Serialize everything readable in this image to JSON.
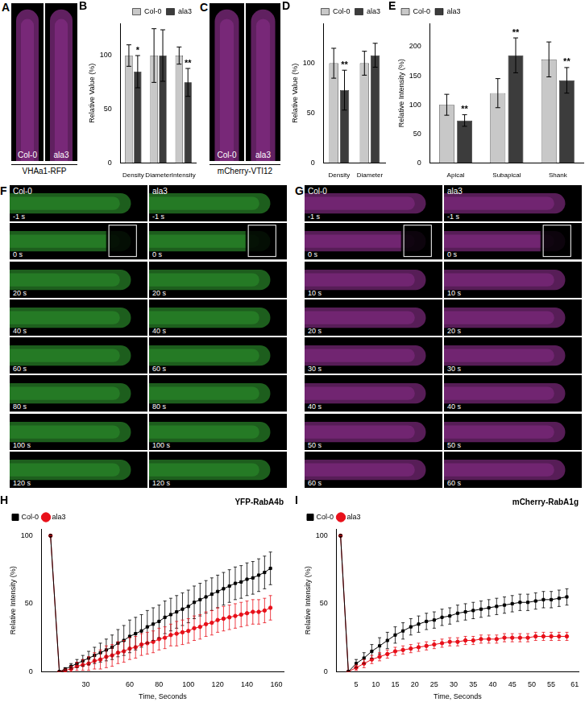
{
  "chart_data": [
    {
      "panel": "B",
      "type": "bar",
      "y_label": "Relative Value (%)",
      "categories": [
        "Density",
        "Diameter",
        "Intensity"
      ],
      "series": [
        {
          "name": "Col-0",
          "color": "#c8c8c8",
          "values": [
            100,
            100,
            100
          ],
          "errors": [
            10,
            25,
            8
          ]
        },
        {
          "name": "ala3",
          "color": "#3c3c3c",
          "values": [
            85,
            100,
            75
          ],
          "errors": [
            15,
            24,
            13
          ]
        }
      ],
      "ylim": [
        0,
        130
      ],
      "yticks": [
        0,
        50,
        100
      ],
      "grid": false,
      "legend": "top-right",
      "annotations": [
        {
          "category": "Density",
          "series": "ala3",
          "text": "*"
        },
        {
          "category": "Intensity",
          "series": "ala3",
          "text": "**"
        }
      ]
    },
    {
      "panel": "D",
      "type": "bar",
      "y_label": "Relative Value (%)",
      "categories": [
        "Density",
        "Diameter"
      ],
      "series": [
        {
          "name": "Col-0",
          "color": "#c8c8c8",
          "values": [
            100,
            100
          ],
          "errors": [
            15,
            12
          ]
        },
        {
          "name": "ala3",
          "color": "#3c3c3c",
          "values": [
            73,
            108
          ],
          "errors": [
            20,
            12
          ]
        }
      ],
      "ylim": [
        0,
        140
      ],
      "yticks": [
        0,
        50,
        100
      ],
      "grid": false,
      "legend": "top-right",
      "annotations": [
        {
          "category": "Density",
          "series": "ala3",
          "text": "**"
        }
      ]
    },
    {
      "panel": "E",
      "type": "bar",
      "y_label": "Relative Intensity (%)",
      "categories": [
        "Apical",
        "Subapical",
        "Shank"
      ],
      "series": [
        {
          "name": "Col-0",
          "color": "#c8c8c8",
          "values": [
            100,
            120,
            178
          ],
          "errors": [
            18,
            25,
            30
          ]
        },
        {
          "name": "ala3",
          "color": "#3c3c3c",
          "values": [
            73,
            185,
            142
          ],
          "errors": [
            10,
            30,
            22
          ]
        }
      ],
      "ylim": [
        0,
        240
      ],
      "yticks": [
        0,
        50,
        100,
        150,
        200
      ],
      "grid": false,
      "legend": "top-left",
      "annotations": [
        {
          "category": "Apical",
          "series": "ala3",
          "text": "**"
        },
        {
          "category": "Subapical",
          "series": "ala3",
          "text": "**"
        },
        {
          "category": "Shank",
          "series": "ala3",
          "text": "**"
        }
      ]
    },
    {
      "panel": "H",
      "type": "line",
      "title": "YFP-RabA4b",
      "x_label": "Time, Seconds",
      "y_label": "Relative Intensity (%)",
      "x": [
        6,
        12,
        16,
        20,
        24,
        28,
        32,
        36,
        40,
        44,
        48,
        52,
        56,
        60,
        64,
        68,
        72,
        76,
        80,
        84,
        88,
        92,
        96,
        100,
        104,
        108,
        112,
        116,
        120,
        124,
        128,
        132,
        136,
        140,
        144,
        148,
        152,
        156
      ],
      "series": [
        {
          "name": "Col-0",
          "color": "#000000",
          "marker": "square",
          "values": [
            100,
            0,
            2,
            4,
            6,
            8,
            10,
            12,
            14,
            16,
            18,
            21,
            23,
            26,
            28,
            30,
            33,
            35,
            37,
            40,
            42,
            44,
            46,
            48,
            51,
            53,
            55,
            57,
            59,
            61,
            63,
            65,
            66,
            68,
            69,
            71,
            73,
            76
          ],
          "errors": [
            0,
            0,
            1,
            2,
            3,
            4,
            5,
            6,
            7,
            8,
            9,
            10,
            11,
            12,
            12,
            12,
            12,
            12,
            12,
            12,
            12,
            12,
            12,
            12,
            12,
            12,
            12,
            12,
            12,
            12,
            12,
            12,
            12,
            12,
            12,
            12,
            12,
            12
          ]
        },
        {
          "name": "ala3",
          "color": "#e8101a",
          "marker": "circle",
          "values": [
            100,
            0,
            1,
            2,
            4,
            5,
            6,
            8,
            9,
            11,
            12,
            14,
            15,
            17,
            18,
            20,
            21,
            22,
            24,
            25,
            27,
            28,
            29,
            30,
            32,
            33,
            35,
            36,
            38,
            39,
            40,
            41,
            42,
            43,
            44,
            44,
            45,
            47
          ],
          "errors": [
            0,
            0,
            1,
            2,
            3,
            4,
            5,
            6,
            7,
            8,
            8,
            8,
            8,
            8,
            8,
            8,
            8,
            8,
            8,
            8,
            8,
            9,
            9,
            9,
            9,
            9,
            9,
            9,
            9,
            9,
            9,
            9,
            9,
            9,
            9,
            9,
            9,
            9
          ]
        }
      ],
      "xlim": [
        0,
        165
      ],
      "xticks": [
        30,
        60,
        80,
        100,
        120,
        140,
        160
      ],
      "ylim": [
        0,
        105
      ],
      "yticks": [
        0,
        50,
        100
      ],
      "grid": false,
      "legend": "top-left"
    },
    {
      "panel": "I",
      "type": "line",
      "title": "mCherry-RabA1g",
      "x_label": "Time, Seconds",
      "y_label": "Relative Intensity (%)",
      "x": [
        1,
        3,
        5,
        7,
        9,
        11,
        13,
        15,
        17,
        19,
        21,
        23,
        25,
        27,
        29,
        31,
        33,
        35,
        37,
        39,
        41,
        43,
        45,
        47,
        49,
        51,
        53,
        55,
        57,
        59
      ],
      "series": [
        {
          "name": "Col-0",
          "color": "#000000",
          "marker": "square",
          "values": [
            100,
            0,
            6,
            10,
            15,
            19,
            23,
            27,
            30,
            33,
            35,
            37,
            38,
            40,
            41,
            43,
            44,
            45,
            46,
            47,
            48,
            49,
            50,
            51,
            51,
            52,
            53,
            53,
            54,
            55
          ],
          "errors": [
            0,
            0,
            3,
            4,
            5,
            6,
            6,
            6,
            6,
            6,
            6,
            6,
            6,
            6,
            6,
            6,
            6,
            6,
            6,
            6,
            6,
            6,
            6,
            6,
            6,
            6,
            6,
            6,
            6,
            6
          ]
        },
        {
          "name": "ala3",
          "color": "#e8101a",
          "marker": "circle",
          "values": [
            100,
            0,
            3,
            6,
            9,
            11,
            13,
            15,
            16,
            17,
            18,
            19,
            20,
            21,
            22,
            22,
            23,
            23,
            24,
            24,
            24,
            25,
            25,
            25,
            25,
            26,
            26,
            26,
            26,
            26
          ],
          "errors": [
            0,
            0,
            2,
            3,
            3,
            3,
            3,
            3,
            3,
            3,
            3,
            3,
            3,
            3,
            3,
            3,
            3,
            3,
            3,
            3,
            3,
            3,
            3,
            3,
            3,
            3,
            3,
            3,
            3,
            3
          ]
        }
      ],
      "xlim": [
        0,
        62
      ],
      "xticks": [
        5,
        10,
        15,
        20,
        25,
        30,
        35,
        40,
        45,
        50,
        55,
        61
      ],
      "ylim": [
        0,
        105
      ],
      "yticks": [
        0,
        50,
        100
      ],
      "grid": false,
      "legend": "top-left"
    }
  ],
  "image_panels": [
    {
      "panel": "A",
      "columns": [
        "Col-0",
        "ala3"
      ],
      "caption": "VHAa1-RFP",
      "color": "#c040c0"
    },
    {
      "panel": "C",
      "columns": [
        "Col-0",
        "ala3"
      ],
      "caption": "mCherry-VTI12",
      "color": "#c040c0"
    },
    {
      "panel": "F",
      "columns": [
        "Col-0",
        "ala3"
      ],
      "times": [
        "-1 s",
        "0 s",
        "20 s",
        "40 s",
        "60 s",
        "80 s",
        "100 s",
        "120 s"
      ],
      "color": "#40d040"
    },
    {
      "panel": "G",
      "columns": [
        "Col-0",
        "ala3"
      ],
      "times": [
        "-1 s",
        "0 s",
        "10 s",
        "20 s",
        "30 s",
        "40 s",
        "50 s",
        "60 s"
      ],
      "color": "#c040c0"
    }
  ]
}
